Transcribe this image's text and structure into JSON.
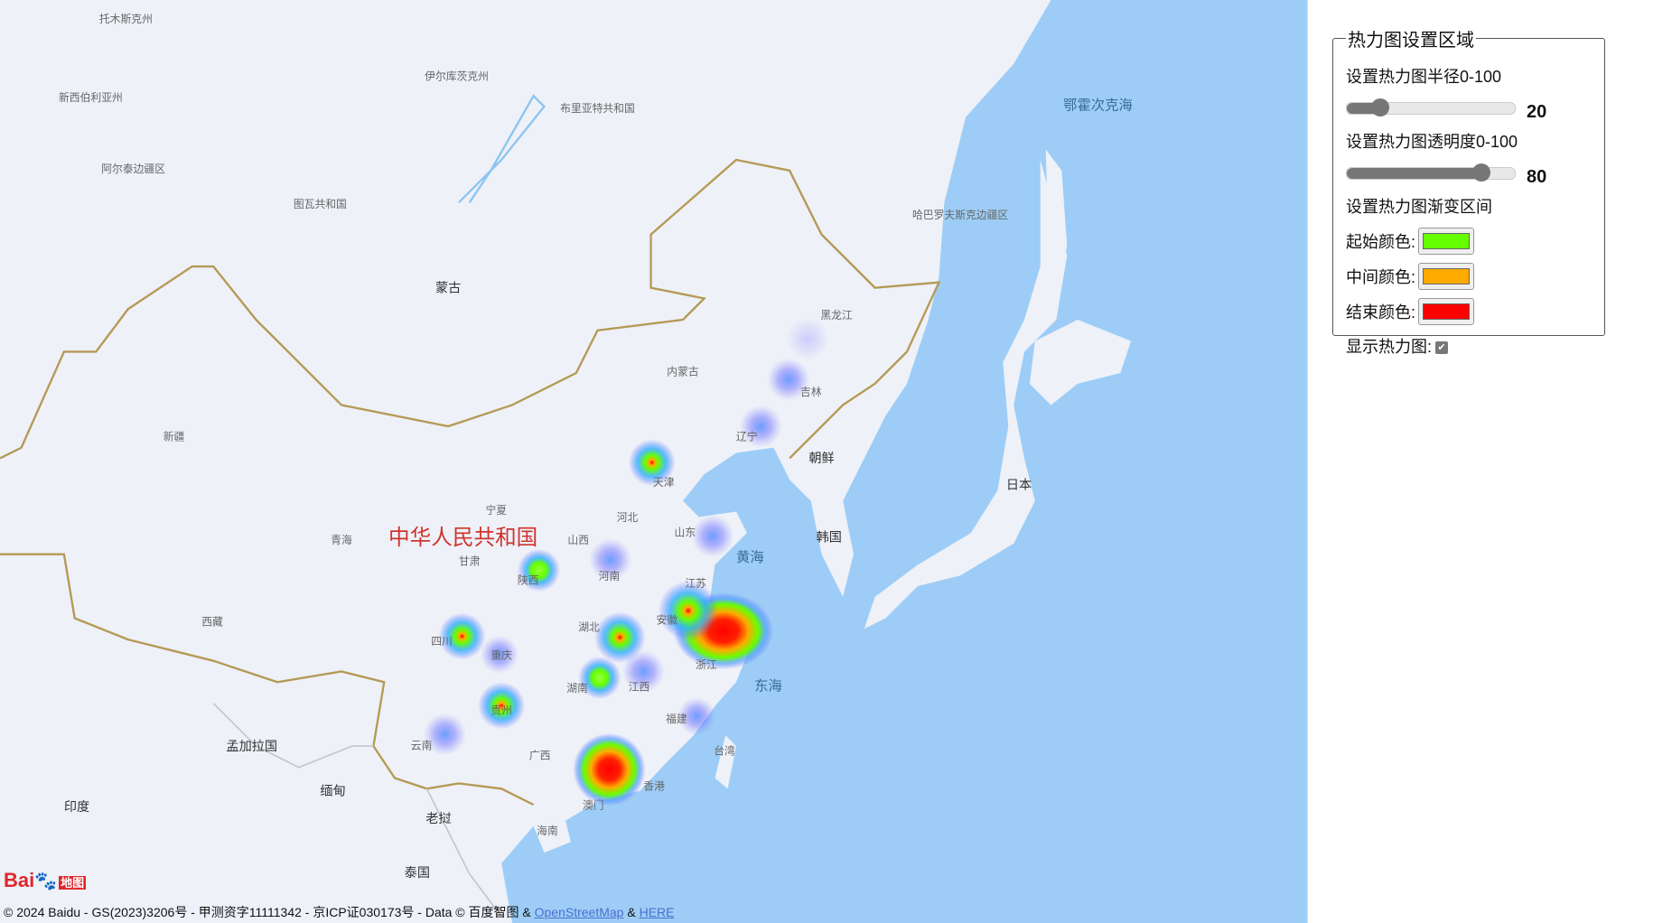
{
  "map": {
    "labels": {
      "mongolia": "蒙古",
      "china": "中华人民共和国",
      "north_korea": "朝鲜",
      "south_korea": "韩国",
      "japan": "日本",
      "yellow_sea": "黄海",
      "east_sea": "东海",
      "okhotsk": "鄂霍次克海",
      "bangladesh": "孟加拉国",
      "myanmar": "缅甸",
      "india": "印度",
      "laos": "老挝",
      "thailand": "泰国",
      "xinjiang": "新疆",
      "tibet": "西藏",
      "qinghai": "青海",
      "inner_mongolia": "内蒙古",
      "heilongjiang": "黑龙江",
      "jilin": "吉林",
      "liaoning": "辽宁",
      "hebei": "河北",
      "tianjin": "天津",
      "shandong": "山东",
      "shanxi": "山西",
      "henan": "河南",
      "shaanxi": "陕西",
      "gansu": "甘肃",
      "ningxia": "宁夏",
      "jiangsu": "江苏",
      "anhui": "安徽",
      "hubei": "湖北",
      "zhejiang": "浙江",
      "sichuan": "四川",
      "chongqing": "重庆",
      "hunan": "湖南",
      "jiangxi": "江西",
      "guizhou": "贵州",
      "fujian": "福建",
      "yunnan": "云南",
      "guangxi": "广西",
      "hongkong": "香港",
      "macau": "澳门",
      "taiwan": "台湾",
      "hainan": "海南",
      "irkutsk": "伊尔库茨克州",
      "buryatia": "布里亚特共和国",
      "novosibirsk": "新西伯利亚州",
      "altai": "阿尔泰边疆区",
      "tuva": "图瓦共和国",
      "khabarovsk": "哈巴罗夫斯克边疆区",
      "krasnoyarsk": "托木斯克州"
    },
    "colors": {
      "land": "#eef1f8",
      "sea": "#9dcdf6",
      "border": "#b59a55"
    },
    "heat_points": [
      {
        "name": "beijing",
        "intensity": 0.9
      },
      {
        "name": "shaanxi",
        "intensity": 0.6
      },
      {
        "name": "sichuan",
        "intensity": 0.8
      },
      {
        "name": "chongqing",
        "intensity": 0.3
      },
      {
        "name": "guizhou",
        "intensity": 0.8
      },
      {
        "name": "hubei",
        "intensity": 0.85
      },
      {
        "name": "hunan",
        "intensity": 0.6
      },
      {
        "name": "jiangxi",
        "intensity": 0.3
      },
      {
        "name": "shanghai",
        "intensity": 1.0
      },
      {
        "name": "nanjing",
        "intensity": 0.85
      },
      {
        "name": "guangdong",
        "intensity": 1.0
      },
      {
        "name": "fujian",
        "intensity": 0.3
      },
      {
        "name": "yunnan",
        "intensity": 0.3
      },
      {
        "name": "heilongjiang",
        "intensity": 0.1
      },
      {
        "name": "jilin",
        "intensity": 0.2
      },
      {
        "name": "liaoning",
        "intensity": 0.25
      },
      {
        "name": "shandong",
        "intensity": 0.25
      },
      {
        "name": "henan",
        "intensity": 0.25
      }
    ],
    "copyright": "© 2024 Baidu - GS(2023)3206号 - 甲测资字11111342 - 京ICP证030173号 - Data © 百度智图 & ",
    "osm_link": "OpenStreetMap",
    "amp": " & ",
    "here_link": "HERE",
    "logo": {
      "text": "Bai",
      "du": "du",
      "suffix": "地图"
    }
  },
  "panel": {
    "legend": "热力图设置区域",
    "radius_label": "设置热力图半径0-100",
    "radius_value": "20",
    "opacity_label": "设置热力图透明度0-100",
    "opacity_value": "80",
    "gradient_label": "设置热力图渐变区间",
    "start_label": "起始颜色:",
    "start_color": "#66ff00",
    "mid_label": "中间颜色:",
    "mid_color": "#ffaa00",
    "end_label": "结束颜色:",
    "end_color": "#ff0000",
    "show_label": "显示热力图:",
    "show_checked": true
  }
}
